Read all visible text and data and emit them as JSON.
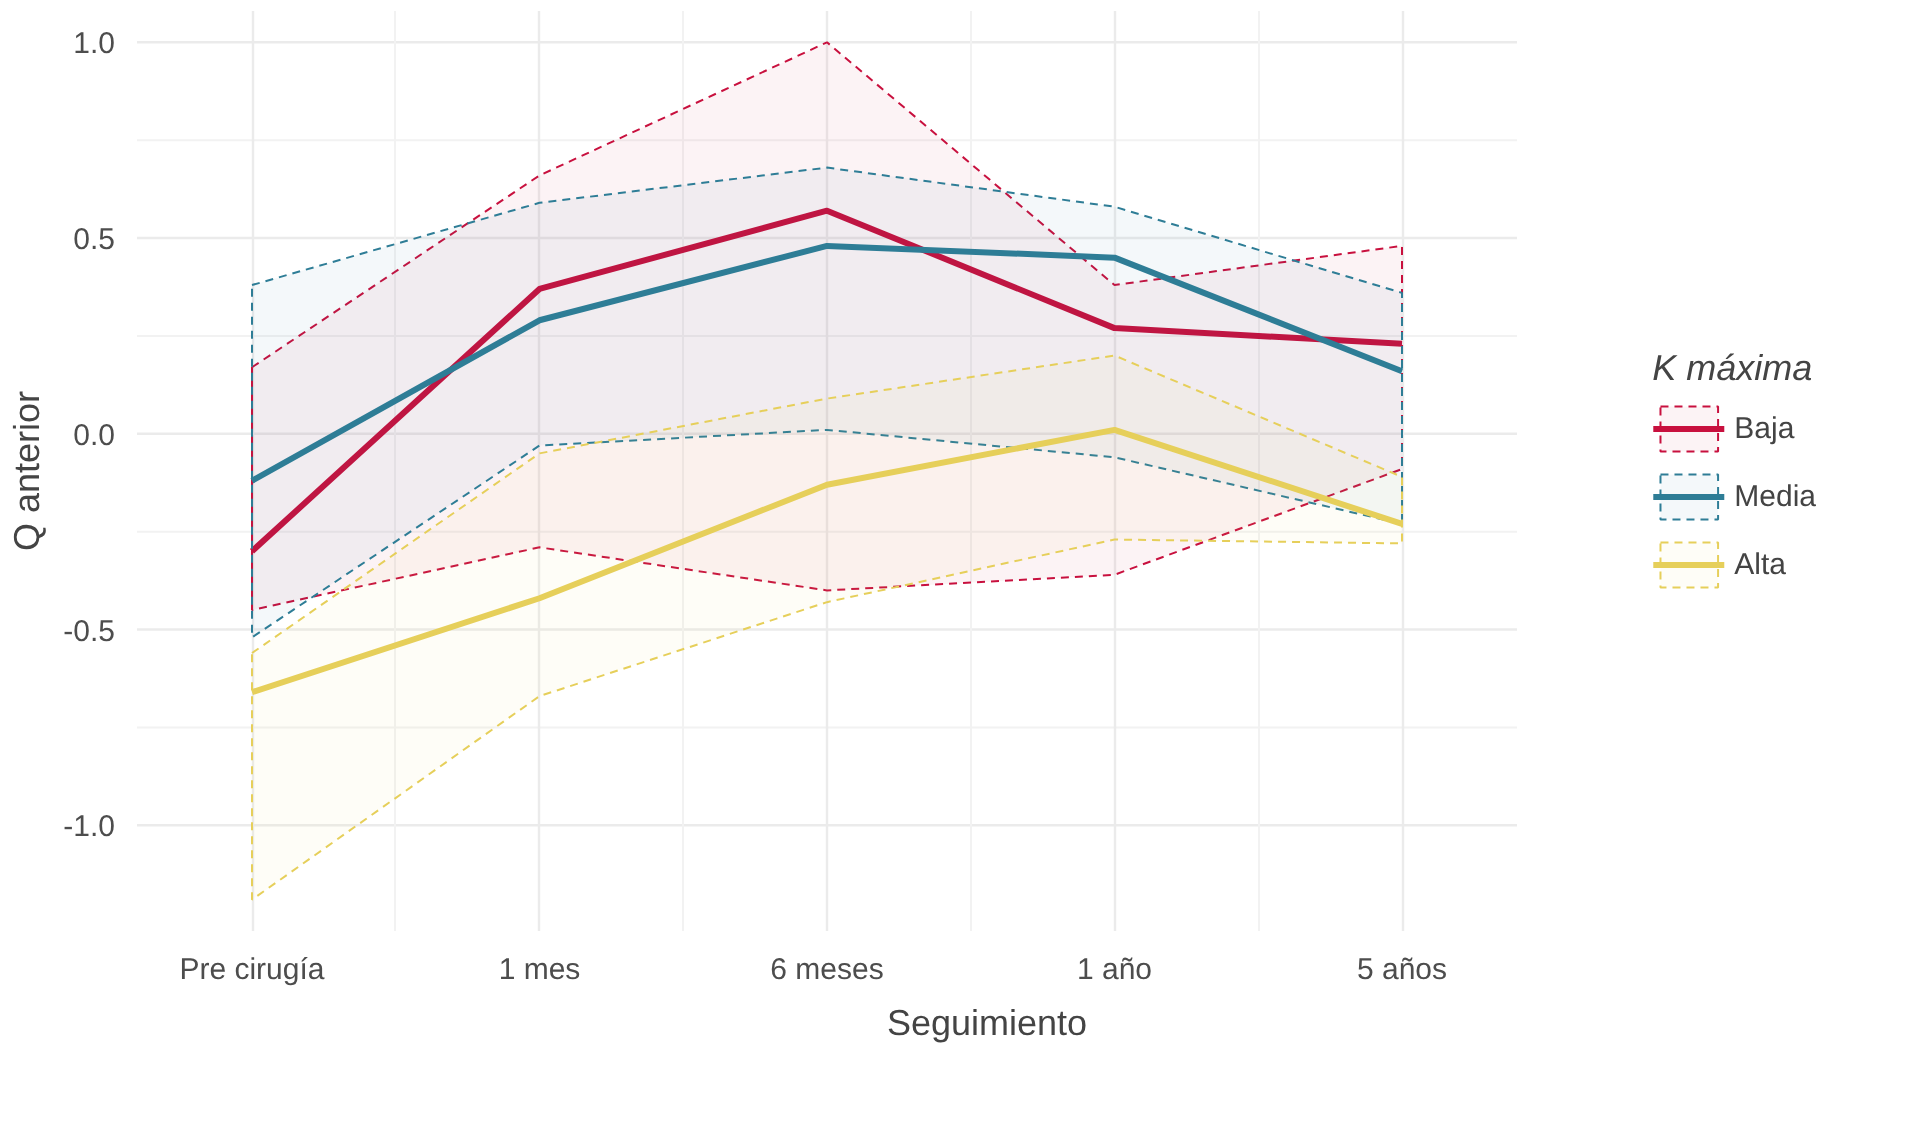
{
  "chart_data": {
    "type": "line",
    "xlabel": "Seguimiento",
    "ylabel": "Q anterior",
    "legend_title": "K máxima",
    "categories": [
      "Pre cirugía",
      "1 mes",
      "6 meses",
      "1 año",
      "5 años"
    ],
    "series": [
      {
        "name": "Baja",
        "color": "#c8103e",
        "values": [
          -0.3,
          0.37,
          0.57,
          0.27,
          0.23
        ],
        "lower": [
          -0.45,
          -0.29,
          -0.4,
          -0.36,
          -0.09
        ],
        "upper": [
          0.17,
          0.66,
          1.0,
          0.38,
          0.48
        ]
      },
      {
        "name": "Media",
        "color": "#2e7d96",
        "values": [
          -0.12,
          0.29,
          0.48,
          0.45,
          0.16
        ],
        "lower": [
          -0.52,
          -0.03,
          0.01,
          -0.06,
          -0.23
        ],
        "upper": [
          0.38,
          0.59,
          0.68,
          0.58,
          0.36
        ]
      },
      {
        "name": "Alta",
        "color": "#e6cf5a",
        "values": [
          -0.66,
          -0.42,
          -0.13,
          0.01,
          -0.23
        ],
        "lower": [
          -1.19,
          -0.67,
          -0.43,
          -0.27,
          -0.28
        ],
        "upper": [
          -0.56,
          -0.05,
          0.09,
          0.2,
          -0.11
        ]
      }
    ],
    "ylim": [
      -1.27,
      1.08
    ],
    "yticks": [
      {
        "value": -1.0,
        "label": "-1.0"
      },
      {
        "value": -0.5,
        "label": "-0.5"
      },
      {
        "value": 0.0,
        "label": "0.0"
      },
      {
        "value": 0.5,
        "label": "0.5"
      },
      {
        "value": 1.0,
        "label": "1.0"
      }
    ],
    "grid": true,
    "legend": "right",
    "line_style": "solid",
    "marker": "none"
  }
}
